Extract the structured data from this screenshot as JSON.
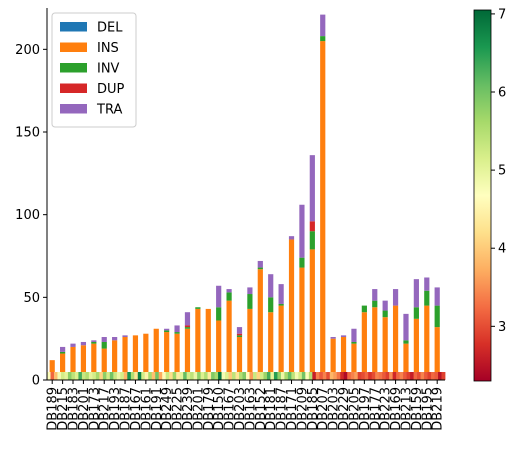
{
  "chart_data": {
    "type": "bar",
    "stacked": true,
    "title": "",
    "xlabel": "",
    "ylabel": "",
    "ylim": [
      0,
      225
    ],
    "yticks": [
      0,
      50,
      100,
      150,
      200
    ],
    "grid": false,
    "legend_placement": "top-left",
    "categories": [
      "DB189",
      "DB215",
      "DB183",
      "DB201",
      "DB173",
      "DB217",
      "DB193",
      "DB187",
      "DB167",
      "DB161",
      "DB191",
      "DB249",
      "DB225",
      "DB239",
      "DB201",
      "DB179",
      "DB150",
      "DB167",
      "DB203",
      "DB163",
      "DB152",
      "DB181",
      "DB187",
      "DB171",
      "DB209",
      "DB185",
      "DB207",
      "DB203",
      "DB229",
      "DB205",
      "DB197",
      "DB177",
      "DB223",
      "DB169",
      "DB213",
      "DB159",
      "DB195",
      "DB219"
    ],
    "series": [
      {
        "name": "DEL",
        "color": "#1f77b4",
        "values": [
          0,
          0,
          0,
          0,
          0,
          0,
          0,
          0,
          0,
          0,
          0,
          0,
          0,
          0,
          0,
          0,
          0,
          0,
          0,
          0,
          0,
          0,
          0,
          0,
          0,
          0,
          0,
          0,
          0,
          0,
          0,
          0,
          0,
          0,
          0,
          0,
          0,
          0
        ]
      },
      {
        "name": "INS",
        "color": "#ff7f0e",
        "values": [
          12,
          16,
          20,
          21,
          22,
          19,
          24,
          26,
          27,
          28,
          31,
          29,
          28,
          31,
          43,
          43,
          36,
          48,
          26,
          43,
          67,
          41,
          45,
          85,
          68,
          79,
          205,
          25,
          26,
          22,
          41,
          44,
          38,
          45,
          22,
          37,
          45,
          32
        ]
      },
      {
        "name": "INV",
        "color": "#2ca02c",
        "values": [
          0,
          1,
          0,
          0,
          1,
          4,
          0,
          0,
          0,
          0,
          0,
          1,
          1,
          1,
          1,
          0,
          8,
          5,
          1,
          9,
          1,
          9,
          1,
          0,
          6,
          11,
          3,
          0,
          0,
          1,
          4,
          4,
          4,
          0,
          2,
          7,
          9,
          13
        ]
      },
      {
        "name": "DUP",
        "color": "#d62728",
        "values": [
          0,
          0,
          0,
          0,
          0,
          0,
          0,
          0,
          0,
          0,
          0,
          0,
          0,
          1,
          0,
          0,
          0,
          0,
          1,
          0,
          0,
          0,
          0,
          0,
          0,
          6,
          0,
          0,
          0,
          0,
          0,
          0,
          0,
          0,
          0,
          0,
          0,
          0
        ]
      },
      {
        "name": "TRA",
        "color": "#9467bd",
        "values": [
          0,
          3,
          2,
          2,
          1,
          3,
          2,
          1,
          0,
          0,
          0,
          1,
          4,
          8,
          0,
          0,
          13,
          2,
          4,
          4,
          4,
          14,
          12,
          2,
          32,
          40,
          13,
          1,
          1,
          8,
          0,
          7,
          6,
          10,
          16,
          17,
          8,
          11
        ]
      }
    ],
    "colorbar": {
      "ticks": [
        3,
        4,
        5,
        6,
        7
      ],
      "range": [
        2.3,
        7.05
      ],
      "colormap": [
        "#a50026",
        "#d73027",
        "#f46d43",
        "#fdae61",
        "#fee08b",
        "#ffffbf",
        "#d9ef8b",
        "#a6d96a",
        "#66bd63",
        "#1a9850",
        "#006837"
      ]
    },
    "color_strip": [
      4.7,
      3.2,
      3.9,
      4.8,
      5.2,
      5.0,
      5.8,
      5.4,
      5.1,
      6.3,
      5.3,
      5.5,
      5.0,
      5.2,
      5.6,
      4.1,
      5.8,
      5.2,
      6.0,
      5.3,
      4.9,
      5.2,
      3.8,
      6.6,
      5.5,
      4.3,
      6.8,
      5.2,
      4.5,
      5.6,
      3.9,
      6.0,
      3.7,
      4.6,
      5.3,
      4.2,
      5.7,
      4.4,
      5.0,
      6.1,
      5.2,
      5.4,
      4.9,
      5.8,
      5.1,
      5.5,
      4.4,
      5.9,
      5.6,
      6.9,
      4.8,
      5.1,
      4.0,
      5.4,
      4.3,
      5.5,
      5.9,
      4.6,
      3.6,
      5.3,
      4.1,
      5.2,
      5.7,
      6.3,
      5.0,
      6.5,
      5.8,
      4.9,
      5.6,
      6.1,
      5.4,
      4.8,
      5.2,
      6.0,
      4.7,
      5.5,
      2.6,
      3.4,
      3.1,
      3.4,
      3.0,
      3.8,
      3.6,
      3.3,
      2.7,
      2.4,
      3.2,
      3.4,
      3.6,
      2.9,
      3.0,
      3.2,
      2.8,
      3.0,
      3.4,
      3.3,
      3.1,
      2.9,
      3.5,
      2.7,
      3.2,
      3.4,
      3.1,
      2.9,
      2.6,
      3.2,
      3.0,
      3.4,
      3.1,
      2.9,
      3.2,
      3.1,
      2.5,
      2.9
    ]
  }
}
